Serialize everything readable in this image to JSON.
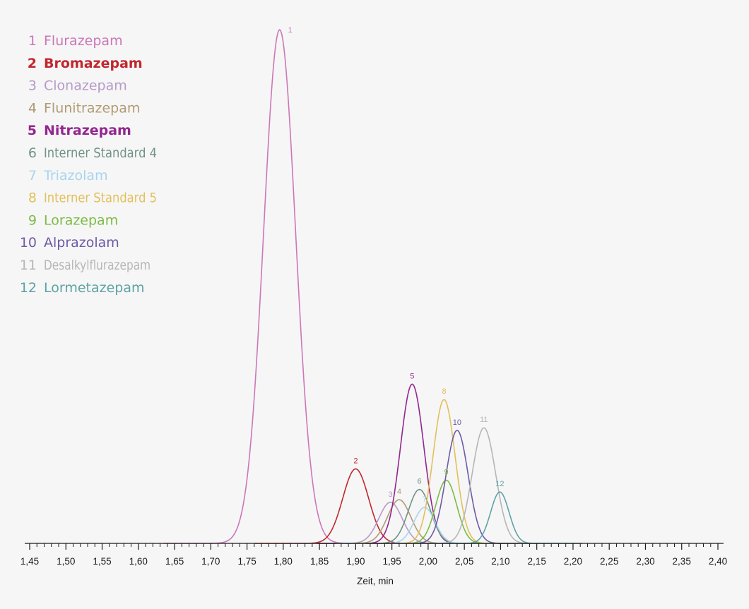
{
  "chart_data": {
    "type": "line",
    "xlabel": "Zeit, min",
    "xlim": [
      1.45,
      2.4
    ],
    "x_tick_values": [
      1.45,
      1.5,
      1.55,
      1.6,
      1.65,
      1.7,
      1.75,
      1.8,
      1.85,
      1.9,
      1.95,
      2.0,
      2.05,
      2.1,
      2.15,
      2.2,
      2.25,
      2.3,
      2.35,
      2.4
    ],
    "x_tick_labels": [
      "1,45",
      "1,50",
      "1,55",
      "1,60",
      "1,65",
      "1,70",
      "1,75",
      "1,80",
      "1,85",
      "1,90",
      "1,95",
      "2,00",
      "2,05",
      "2,10",
      "2,15",
      "2,20",
      "2,25",
      "2,30",
      "2,35",
      "2,40"
    ],
    "ylim": [
      0,
      100
    ],
    "y_axis_shown": false,
    "legend_position": "top-left",
    "series": [
      {
        "number": "1",
        "name": "Flurazepam",
        "color": "#cc77b8",
        "legend_bold": false,
        "retention_time": 1.795,
        "relative_height": 100,
        "peak_width": 0.052
      },
      {
        "number": "2",
        "name": "Bromazepam",
        "color": "#c1272d",
        "legend_bold": true,
        "retention_time": 1.9,
        "relative_height": 14.5,
        "peak_width": 0.042
      },
      {
        "number": "3",
        "name": "Clonazepam",
        "color": "#b79ac8",
        "legend_bold": false,
        "retention_time": 1.948,
        "relative_height": 8.0,
        "peak_width": 0.038
      },
      {
        "number": "4",
        "name": "Flunitrazepam",
        "color": "#b29a73",
        "legend_bold": false,
        "retention_time": 1.96,
        "relative_height": 8.5,
        "peak_width": 0.038
      },
      {
        "number": "5",
        "name": "Nitrazepam",
        "color": "#93268f",
        "legend_bold": true,
        "retention_time": 1.978,
        "relative_height": 31.0,
        "peak_width": 0.038
      },
      {
        "number": "6",
        "name": "Interner Standard 4",
        "color": "#6f9385",
        "legend_bold": false,
        "retention_time": 1.988,
        "relative_height": 10.5,
        "peak_width": 0.036
      },
      {
        "number": "7",
        "name": "Triazolam",
        "color": "#a9d4ee",
        "legend_bold": false,
        "retention_time": 1.995,
        "relative_height": 7.0,
        "peak_width": 0.034
      },
      {
        "number": "8",
        "name": "Interner Standard 5",
        "color": "#e2c05a",
        "legend_bold": false,
        "retention_time": 2.022,
        "relative_height": 28.0,
        "peak_width": 0.036
      },
      {
        "number": "9",
        "name": "Lorazepam",
        "color": "#7dbb45",
        "legend_bold": false,
        "retention_time": 2.025,
        "relative_height": 12.3,
        "peak_width": 0.034
      },
      {
        "number": "10",
        "name": "Alprazolam",
        "color": "#6e5aa7",
        "legend_bold": false,
        "retention_time": 2.04,
        "relative_height": 22.0,
        "peak_width": 0.036
      },
      {
        "number": "11",
        "name": "Desalkylflurazepam",
        "color": "#b6b6b6",
        "legend_bold": false,
        "retention_time": 2.077,
        "relative_height": 22.5,
        "peak_width": 0.038
      },
      {
        "number": "12",
        "name": "Lormetazepam",
        "color": "#5ea3a5",
        "legend_bold": false,
        "retention_time": 2.099,
        "relative_height": 10.0,
        "peak_width": 0.03
      }
    ]
  }
}
